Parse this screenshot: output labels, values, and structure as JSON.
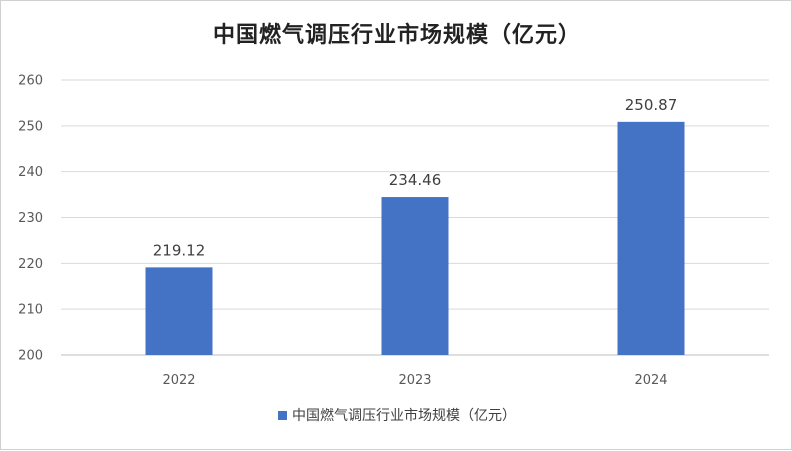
{
  "chart_data": {
    "type": "bar",
    "title": "中国燃气调压行业市场规模（亿元）",
    "categories": [
      "2022",
      "2023",
      "2024"
    ],
    "series": [
      {
        "name": "中国燃气调压行业市场规模（亿元）",
        "values": [
          219.12,
          234.46,
          250.87
        ],
        "labels": [
          "219.12",
          "234.46",
          "250.87"
        ]
      }
    ],
    "ylim": [
      200,
      260
    ],
    "yticks": [
      "200",
      "210",
      "220",
      "230",
      "240",
      "250",
      "260"
    ],
    "grid": true,
    "legend_position": "bottom",
    "bar_color": "#4472C4",
    "grid_color": "#d9d9d9"
  }
}
